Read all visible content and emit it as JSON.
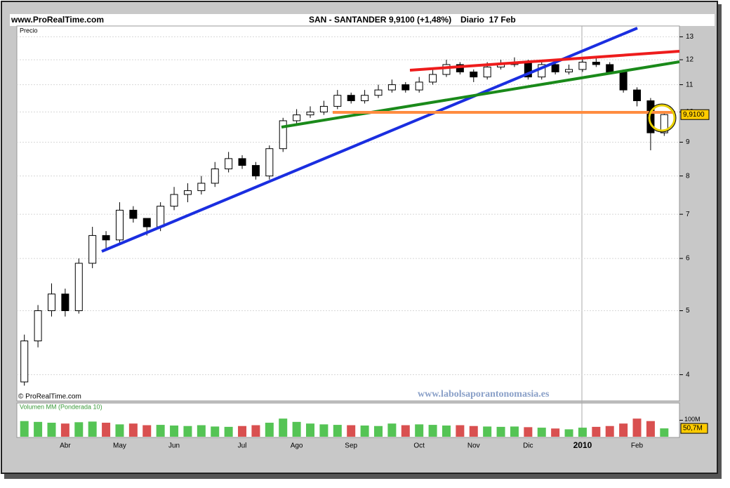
{
  "site": "www.ProRealTime.com",
  "chart_data": [
    {
      "type": "candlestick",
      "title": "SAN - SANTANDER",
      "subtitle": "9,9100 (+1,48%)",
      "period": "Diario  17 Feb",
      "panel_label": "Precio",
      "copyright": "© ProRealTime.com",
      "watermark": "www.labolsaporantonomasia.es",
      "categories": [
        null,
        null,
        null,
        "Abr",
        null,
        null,
        null,
        "May",
        null,
        null,
        null,
        "Jun",
        null,
        null,
        null,
        null,
        "Jul",
        null,
        null,
        null,
        "Ago",
        null,
        null,
        null,
        "Sep",
        null,
        null,
        null,
        null,
        "Oct",
        null,
        null,
        null,
        "Nov",
        null,
        null,
        null,
        "Dic",
        null,
        null,
        null,
        "2010",
        null,
        null,
        null,
        "Feb",
        null,
        null
      ],
      "open": [
        3.9,
        4.5,
        5.0,
        5.3,
        5.0,
        5.9,
        6.5,
        6.4,
        7.1,
        6.9,
        6.7,
        7.2,
        7.5,
        7.6,
        7.8,
        8.2,
        8.5,
        8.3,
        8.0,
        8.8,
        9.7,
        9.9,
        10.0,
        10.2,
        10.6,
        10.4,
        10.6,
        10.8,
        11.0,
        10.8,
        11.1,
        11.4,
        11.8,
        11.5,
        11.3,
        11.7,
        11.8,
        11.9,
        11.3,
        11.8,
        11.5,
        11.6,
        11.9,
        11.8,
        11.5,
        10.8,
        10.4,
        9.3
      ],
      "high": [
        4.6,
        5.1,
        5.5,
        5.4,
        6.0,
        6.7,
        6.6,
        7.3,
        7.2,
        6.9,
        7.3,
        7.7,
        7.8,
        8.0,
        8.4,
        8.7,
        8.6,
        8.4,
        8.9,
        9.8,
        10.1,
        10.2,
        10.4,
        10.8,
        10.7,
        10.8,
        11.0,
        11.2,
        11.1,
        11.3,
        11.6,
        12.0,
        11.9,
        11.6,
        11.9,
        12.0,
        12.1,
        12.0,
        12.0,
        11.9,
        11.8,
        12.1,
        12.1,
        11.9,
        11.6,
        10.9,
        10.5,
        10.0
      ],
      "low": [
        3.85,
        4.4,
        4.9,
        4.9,
        4.95,
        5.8,
        6.2,
        6.3,
        6.8,
        6.5,
        6.6,
        7.1,
        7.3,
        7.5,
        7.7,
        8.1,
        8.2,
        7.9,
        7.9,
        8.7,
        9.6,
        9.8,
        9.9,
        10.1,
        10.3,
        10.3,
        10.5,
        10.7,
        10.7,
        10.7,
        11.0,
        11.3,
        11.4,
        11.1,
        11.2,
        11.6,
        11.7,
        11.2,
        11.2,
        11.4,
        11.4,
        11.5,
        11.7,
        11.4,
        10.7,
        10.2,
        8.75,
        9.2
      ],
      "close": [
        4.5,
        5.0,
        5.3,
        5.0,
        5.9,
        6.5,
        6.4,
        7.1,
        6.9,
        6.7,
        7.2,
        7.5,
        7.6,
        7.8,
        8.2,
        8.5,
        8.3,
        8.0,
        8.8,
        9.7,
        9.9,
        10.0,
        10.2,
        10.6,
        10.4,
        10.6,
        10.8,
        11.0,
        10.8,
        11.1,
        11.4,
        11.8,
        11.5,
        11.3,
        11.7,
        11.8,
        11.9,
        11.3,
        11.8,
        11.5,
        11.6,
        11.9,
        11.8,
        11.5,
        10.8,
        10.4,
        9.3,
        9.91
      ],
      "log_scale": true,
      "ylim": [
        3.65,
        13.5
      ],
      "yticks": [
        4,
        5,
        6,
        7,
        8,
        9,
        10,
        11,
        12,
        13
      ],
      "grid": true,
      "last_price": {
        "value": 9.91,
        "label": "9,9100"
      },
      "last_color": "#ffcc00"
    },
    {
      "type": "volume",
      "title": "Volumen MM (Ponderada 10)",
      "values": [
        95,
        90,
        85,
        80,
        88,
        92,
        85,
        75,
        80,
        70,
        72,
        68,
        65,
        70,
        62,
        60,
        65,
        70,
        85,
        110,
        90,
        80,
        75,
        72,
        70,
        68,
        65,
        80,
        70,
        75,
        72,
        68,
        70,
        65,
        62,
        60,
        62,
        58,
        55,
        50,
        45,
        55,
        60,
        65,
        80,
        110,
        95,
        50.7
      ],
      "up_color": "#55c455",
      "down_color": "#d95050",
      "ylim": [
        0,
        200
      ],
      "yticks": [
        {
          "value": 100,
          "label": "100M"
        }
      ],
      "last_volume": {
        "value": 50.7,
        "label": "50,7M"
      },
      "last_color": "#ffcc00"
    }
  ]
}
